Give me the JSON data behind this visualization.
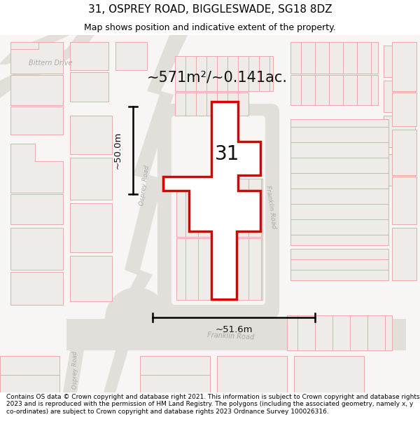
{
  "title": "31, OSPREY ROAD, BIGGLESWADE, SG18 8DZ",
  "subtitle": "Map shows position and indicative extent of the property.",
  "footer": "Contains OS data © Crown copyright and database right 2021. This information is subject to Crown copyright and database rights 2023 and is reproduced with the permission of HM Land Registry. The polygons (including the associated geometry, namely x, y co-ordinates) are subject to Crown copyright and database rights 2023 Ordnance Survey 100026316.",
  "area_label": "~571m²/~0.141ac.",
  "width_label": "~51.6m",
  "height_label": "~50.0m",
  "label_31": "31",
  "road_label_osprey_mid": "Osprey Road",
  "road_label_franklin_right": "Franklin Road",
  "road_label_bittern": "Bittern Drive",
  "road_label_franklin_bottom": "Franklin Road",
  "road_label_osprey_bottom": "Osprey Road",
  "bg_color": "#f8f6f4",
  "road_fill": "#e2deda",
  "bldg_fill": "#eeebe8",
  "bldg_edge": "#e8a8a8",
  "highlight_fill": "#ffffff",
  "highlight_stroke": "#dd0000",
  "title_fontsize": 11,
  "subtitle_fontsize": 9,
  "footer_fontsize": 6.5,
  "road_text_color": "#aaaaaa"
}
